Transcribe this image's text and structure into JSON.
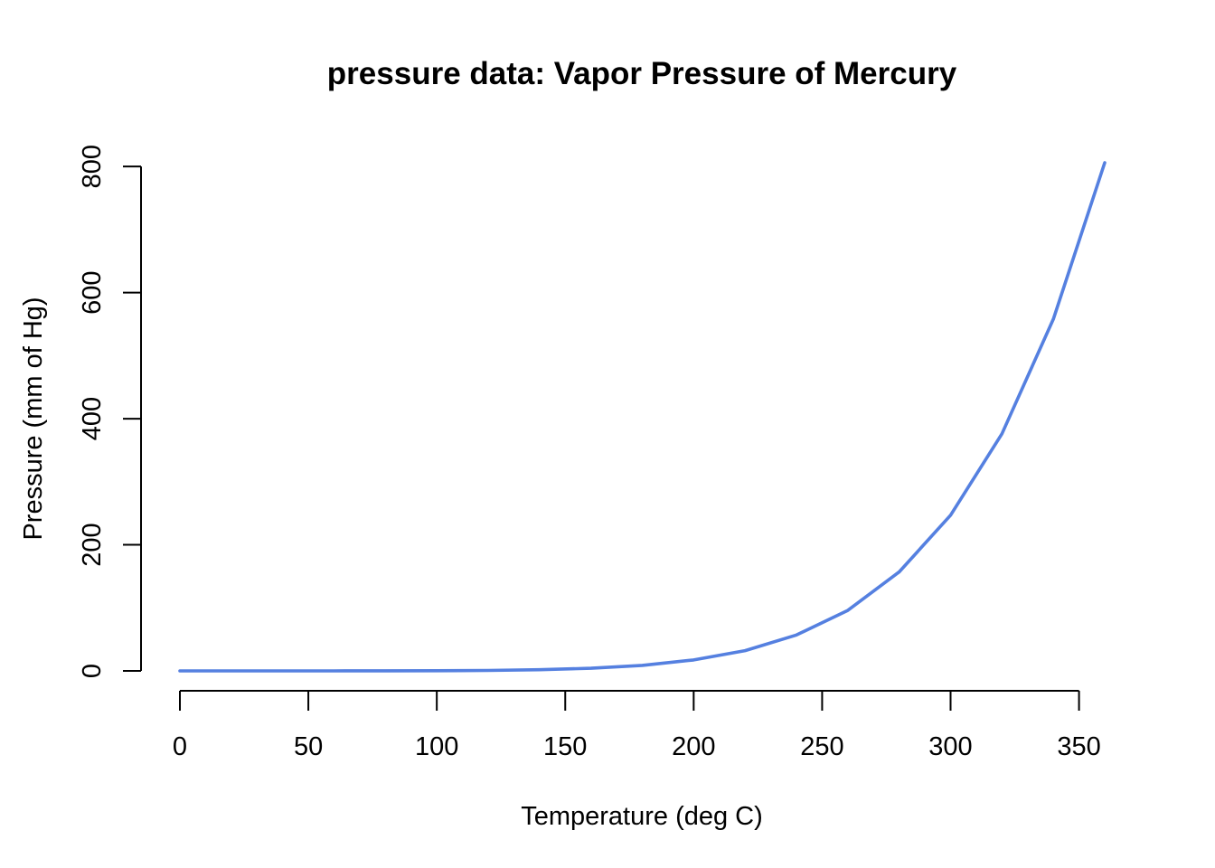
{
  "chart_data": {
    "type": "line",
    "title": "pressure data: Vapor Pressure of Mercury",
    "xlabel": "Temperature (deg C)",
    "ylabel": "Pressure (mm of Hg)",
    "xlim": [
      0,
      360
    ],
    "ylim": [
      0,
      806
    ],
    "x_ticks": [
      0,
      50,
      100,
      150,
      200,
      250,
      300,
      350
    ],
    "y_ticks": [
      0,
      200,
      400,
      600,
      800
    ],
    "grid": false,
    "legend": "none",
    "series": [
      {
        "color": "#5580E0",
        "x": [
          0,
          20,
          40,
          60,
          80,
          100,
          120,
          140,
          160,
          180,
          200,
          220,
          240,
          260,
          280,
          300,
          320,
          340,
          360
        ],
        "values": [
          0.0002,
          0.0012,
          0.006,
          0.03,
          0.09,
          0.27,
          0.75,
          1.85,
          4.2,
          8.8,
          17.3,
          32.1,
          57.0,
          96.0,
          157.0,
          247.0,
          376.0,
          558.0,
          806.0
        ]
      }
    ]
  }
}
